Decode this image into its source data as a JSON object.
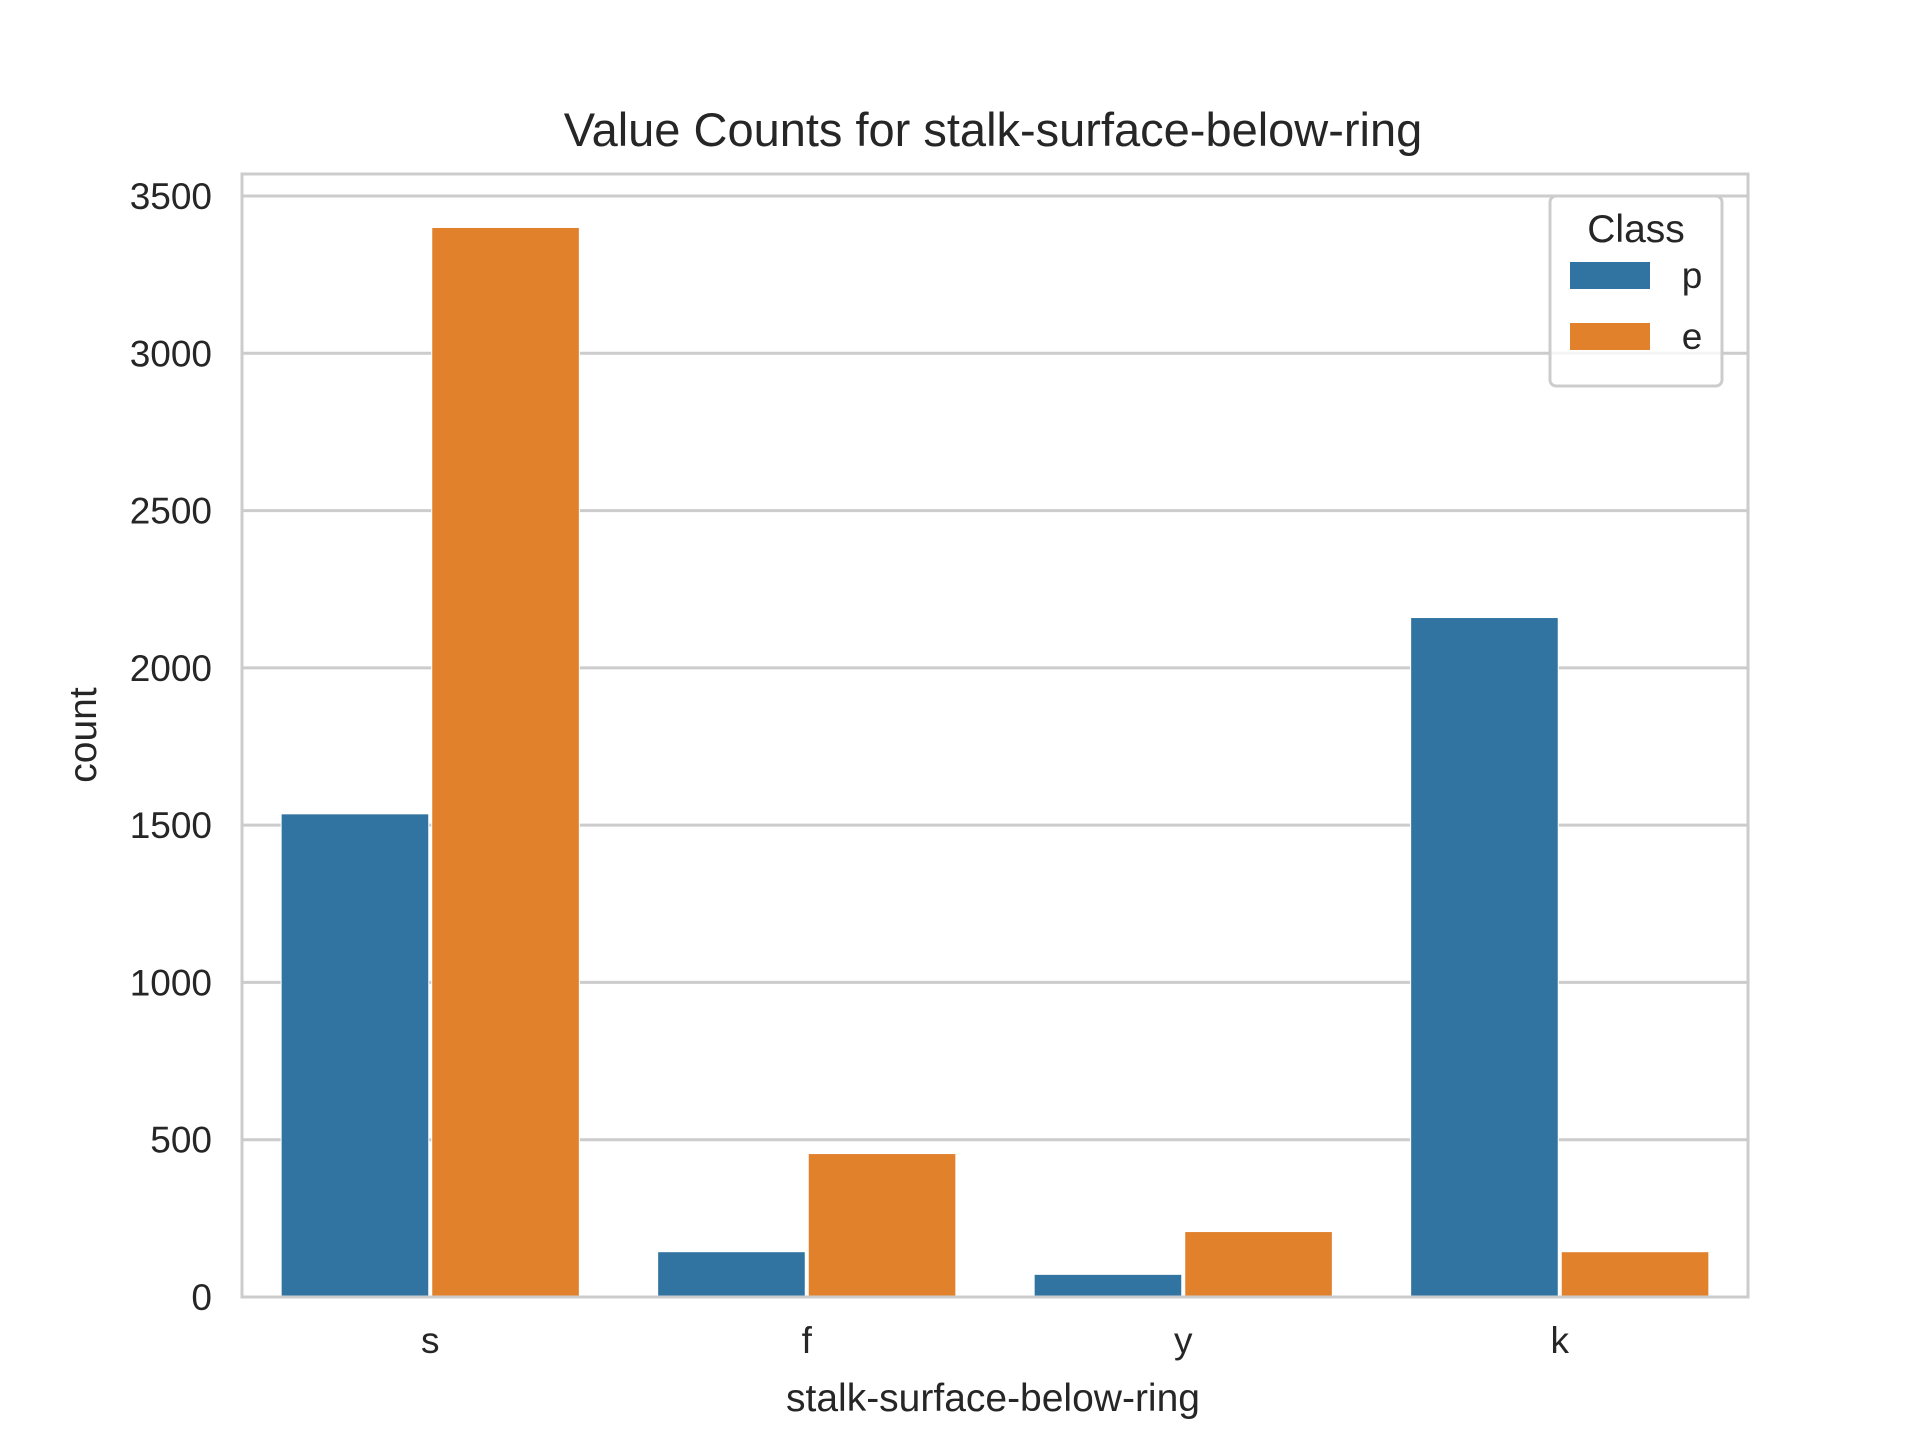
{
  "chart_data": {
    "type": "bar",
    "title": "Value Counts for stalk-surface-below-ring",
    "xlabel": "stalk-surface-below-ring",
    "ylabel": "count",
    "categories": [
      "s",
      "f",
      "y",
      "k"
    ],
    "series": [
      {
        "name": "p",
        "color": "#3274a1",
        "values": [
          1536,
          144,
          72,
          2160
        ]
      },
      {
        "name": "e",
        "color": "#e1812c",
        "values": [
          3400,
          456,
          208,
          144
        ]
      }
    ],
    "ylim": [
      0,
      3570
    ],
    "yticks": [
      0,
      500,
      1000,
      1500,
      2000,
      2500,
      3000,
      3500
    ],
    "grid": true,
    "legend": {
      "title": "Class",
      "placement": "top-right"
    }
  }
}
